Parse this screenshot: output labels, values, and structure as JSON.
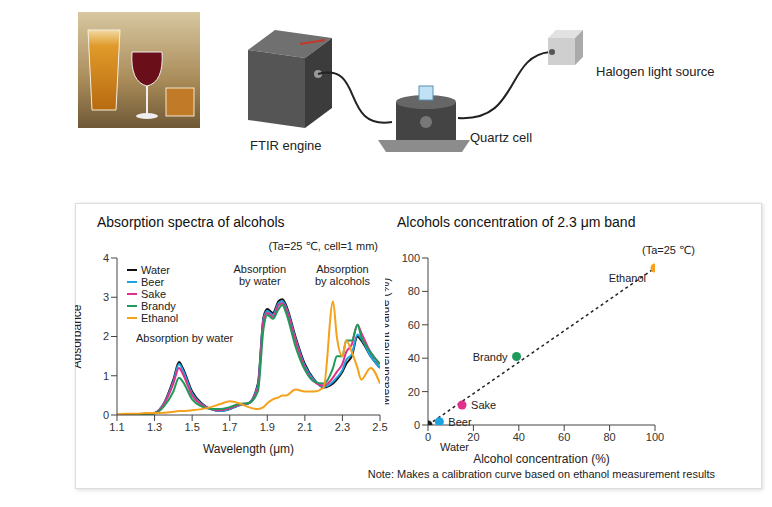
{
  "diagram": {
    "ftir_engine": "FTIR engine",
    "quartz_cell": "Quartz cell",
    "light_source": "Halogen light source"
  },
  "chart_data": [
    {
      "type": "line",
      "title": "Absorption spectra of alcohols",
      "subtitle": "(Ta=25 ℃, cell=1 mm)",
      "x_label": "Wavelength (μm)",
      "y_label": "Absorbance",
      "xlim": [
        1.1,
        2.5
      ],
      "xticks": [
        1.1,
        1.3,
        1.5,
        1.7,
        1.9,
        2.1,
        2.3,
        2.5
      ],
      "ylim": [
        0,
        4
      ],
      "yticks": [
        0,
        1,
        2,
        3,
        4
      ],
      "grid": false,
      "legend": "upper left",
      "annotations": [
        {
          "text": "Absorption by water",
          "x": 1.46,
          "y": 1.85
        },
        {
          "text": "Absorption\nby water",
          "x": 1.86,
          "y": 3.62
        },
        {
          "text": "Absorption\nby alcohols",
          "x": 2.3,
          "y": 3.62
        }
      ],
      "x": [
        1.1,
        1.15,
        1.2,
        1.25,
        1.3,
        1.35,
        1.4,
        1.43,
        1.45,
        1.5,
        1.55,
        1.6,
        1.65,
        1.7,
        1.75,
        1.8,
        1.85,
        1.88,
        1.9,
        1.93,
        1.96,
        1.98,
        2.0,
        2.05,
        2.1,
        2.15,
        2.2,
        2.25,
        2.27,
        2.3,
        2.32,
        2.35,
        2.38,
        2.4,
        2.45,
        2.5
      ],
      "series": [
        {
          "name": "Water",
          "color": "#111111",
          "values": [
            0,
            0,
            0,
            0.02,
            0.05,
            0.3,
            0.9,
            1.35,
            1.2,
            0.6,
            0.3,
            0.15,
            0.1,
            0.15,
            0.25,
            0.3,
            0.8,
            2.5,
            2.7,
            2.6,
            2.9,
            2.95,
            2.8,
            2.0,
            1.3,
            0.9,
            0.7,
            0.8,
            0.9,
            1.1,
            1.3,
            1.5,
            2.0,
            1.9,
            1.5,
            1.2
          ]
        },
        {
          "name": "Beer",
          "color": "#1aa3e0",
          "values": [
            0,
            0,
            0,
            0.02,
            0.05,
            0.3,
            0.85,
            1.3,
            1.15,
            0.55,
            0.28,
            0.15,
            0.1,
            0.15,
            0.25,
            0.3,
            0.75,
            2.45,
            2.65,
            2.55,
            2.85,
            2.9,
            2.75,
            1.95,
            1.25,
            0.88,
            0.72,
            0.85,
            0.95,
            1.15,
            1.4,
            1.55,
            2.05,
            1.95,
            1.5,
            1.2
          ]
        },
        {
          "name": "Sake",
          "color": "#e0308a",
          "values": [
            0,
            0,
            0,
            0.02,
            0.05,
            0.28,
            0.8,
            1.2,
            1.05,
            0.5,
            0.26,
            0.15,
            0.12,
            0.17,
            0.26,
            0.3,
            0.7,
            2.4,
            2.6,
            2.5,
            2.8,
            2.85,
            2.7,
            1.9,
            1.2,
            0.85,
            0.75,
            0.95,
            1.1,
            1.3,
            1.6,
            1.8,
            2.3,
            2.1,
            1.6,
            1.3
          ]
        },
        {
          "name": "Brandy",
          "color": "#1f9a5a",
          "values": [
            0,
            0,
            0,
            0.02,
            0.04,
            0.22,
            0.6,
            0.95,
            0.85,
            0.4,
            0.22,
            0.15,
            0.15,
            0.2,
            0.28,
            0.3,
            0.6,
            2.2,
            2.55,
            2.45,
            2.7,
            2.8,
            2.6,
            1.75,
            1.15,
            0.85,
            0.8,
            1.2,
            1.5,
            1.5,
            1.9,
            1.9,
            2.3,
            2.0,
            1.6,
            1.3
          ]
        },
        {
          "name": "Ethanol",
          "color": "#f5a11c",
          "values": [
            0.02,
            0.03,
            0.03,
            0.05,
            0.05,
            0.06,
            0.08,
            0.1,
            0.1,
            0.12,
            0.15,
            0.2,
            0.28,
            0.35,
            0.3,
            0.2,
            0.15,
            0.2,
            0.3,
            0.4,
            0.45,
            0.5,
            0.5,
            0.65,
            0.6,
            0.6,
            0.7,
            2.9,
            2.0,
            1.5,
            1.9,
            1.6,
            1.2,
            0.9,
            1.2,
            0.8
          ]
        }
      ]
    },
    {
      "type": "scatter",
      "title": "Alcohols concentration of 2.3 μm band",
      "subtitle": "(Ta=25 ℃)",
      "x_label": "Alcohol concentration (%)",
      "y_label": "Measurement value (%)",
      "xlim": [
        0,
        100
      ],
      "xticks": [
        0,
        20,
        40,
        60,
        80,
        100
      ],
      "ylim": [
        0,
        100
      ],
      "yticks": [
        0,
        20,
        40,
        60,
        80,
        100
      ],
      "grid": false,
      "marker": "circle",
      "points": [
        {
          "name": "Water",
          "x": 0,
          "y": 0,
          "color": "#1a1a1a"
        },
        {
          "name": "Beer",
          "x": 5,
          "y": 2,
          "color": "#1aa3e0"
        },
        {
          "name": "Sake",
          "x": 15,
          "y": 12,
          "color": "#e0308a"
        },
        {
          "name": "Brandy",
          "x": 39,
          "y": 41,
          "color": "#1f9a5a"
        },
        {
          "name": "Ethanol",
          "x": 100,
          "y": 94,
          "color": "#f5a11c"
        }
      ],
      "calibration_line": {
        "x": [
          0,
          100
        ],
        "y": [
          0,
          94
        ],
        "color": "#222222",
        "line_style": "dashed"
      },
      "note": "Note: Makes a calibration curve based on ethanol measurement results"
    }
  ]
}
